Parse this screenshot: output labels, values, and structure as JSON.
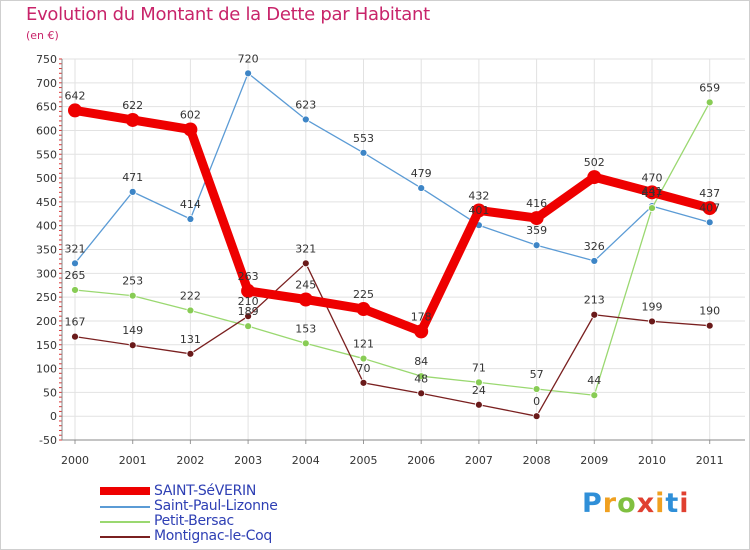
{
  "title": "Evolution du Montant de la Dette par Habitant",
  "subtitle": "(en €)",
  "logo": {
    "letters": [
      "P",
      "r",
      "o",
      "x",
      "i",
      "t",
      "i"
    ],
    "colors": [
      "#2f8fd8",
      "#f0a020",
      "#80c040",
      "#e04030",
      "#f0a020",
      "#2f8fd8",
      "#e04030"
    ]
  },
  "chart_data": {
    "type": "line",
    "title": "Evolution du Montant de la Dette par Habitant",
    "subtitle": "(en €)",
    "x": [
      "2000",
      "2001",
      "2002",
      "2003",
      "2004",
      "2005",
      "2006",
      "2007",
      "2008",
      "2009",
      "2010",
      "2011"
    ],
    "ylim": [
      -50,
      750
    ],
    "yticks": [
      "-50",
      "0",
      "50",
      "100",
      "150",
      "200",
      "250",
      "300",
      "350",
      "400",
      "450",
      "500",
      "550",
      "600",
      "650",
      "700",
      "750"
    ],
    "grid": true,
    "legend": "bottom-left",
    "series": [
      {
        "name": "SAINT-SéVERIN",
        "color": "#ee0000",
        "values": [
          642,
          622,
          602,
          263,
          245,
          225,
          178,
          432,
          416,
          502,
          470,
          437
        ],
        "labels": [
          "642",
          "622",
          "602",
          "263",
          "245",
          "225",
          "178",
          "432",
          "416",
          "502",
          "470",
          "437"
        ]
      },
      {
        "name": "Saint-Paul-Lizonne",
        "color": "#5b9bd5",
        "values": [
          321,
          471,
          414,
          720,
          623,
          553,
          479,
          401,
          359,
          326,
          441,
          407
        ],
        "labels": [
          "321",
          "471",
          "414",
          "720",
          "623",
          "553",
          "479",
          "401",
          "359",
          "326",
          "441",
          "407"
        ]
      },
      {
        "name": "Petit-Bersac",
        "color": "#9ad870",
        "values": [
          265,
          253,
          222,
          189,
          153,
          121,
          84,
          71,
          57,
          44,
          437,
          659
        ],
        "labels": [
          "265",
          "253",
          "222",
          "189",
          "153",
          "121",
          "84",
          "71",
          "57",
          "44",
          "437",
          "659"
        ]
      },
      {
        "name": "Montignac-le-Coq",
        "color": "#7a2020",
        "values": [
          167,
          149,
          131,
          210,
          321,
          70,
          48,
          24,
          0,
          213,
          199,
          190
        ],
        "labels": [
          "167",
          "149",
          "131",
          "210",
          "321",
          "70",
          "48",
          "24",
          "0",
          "213",
          "199",
          "190"
        ]
      }
    ]
  }
}
